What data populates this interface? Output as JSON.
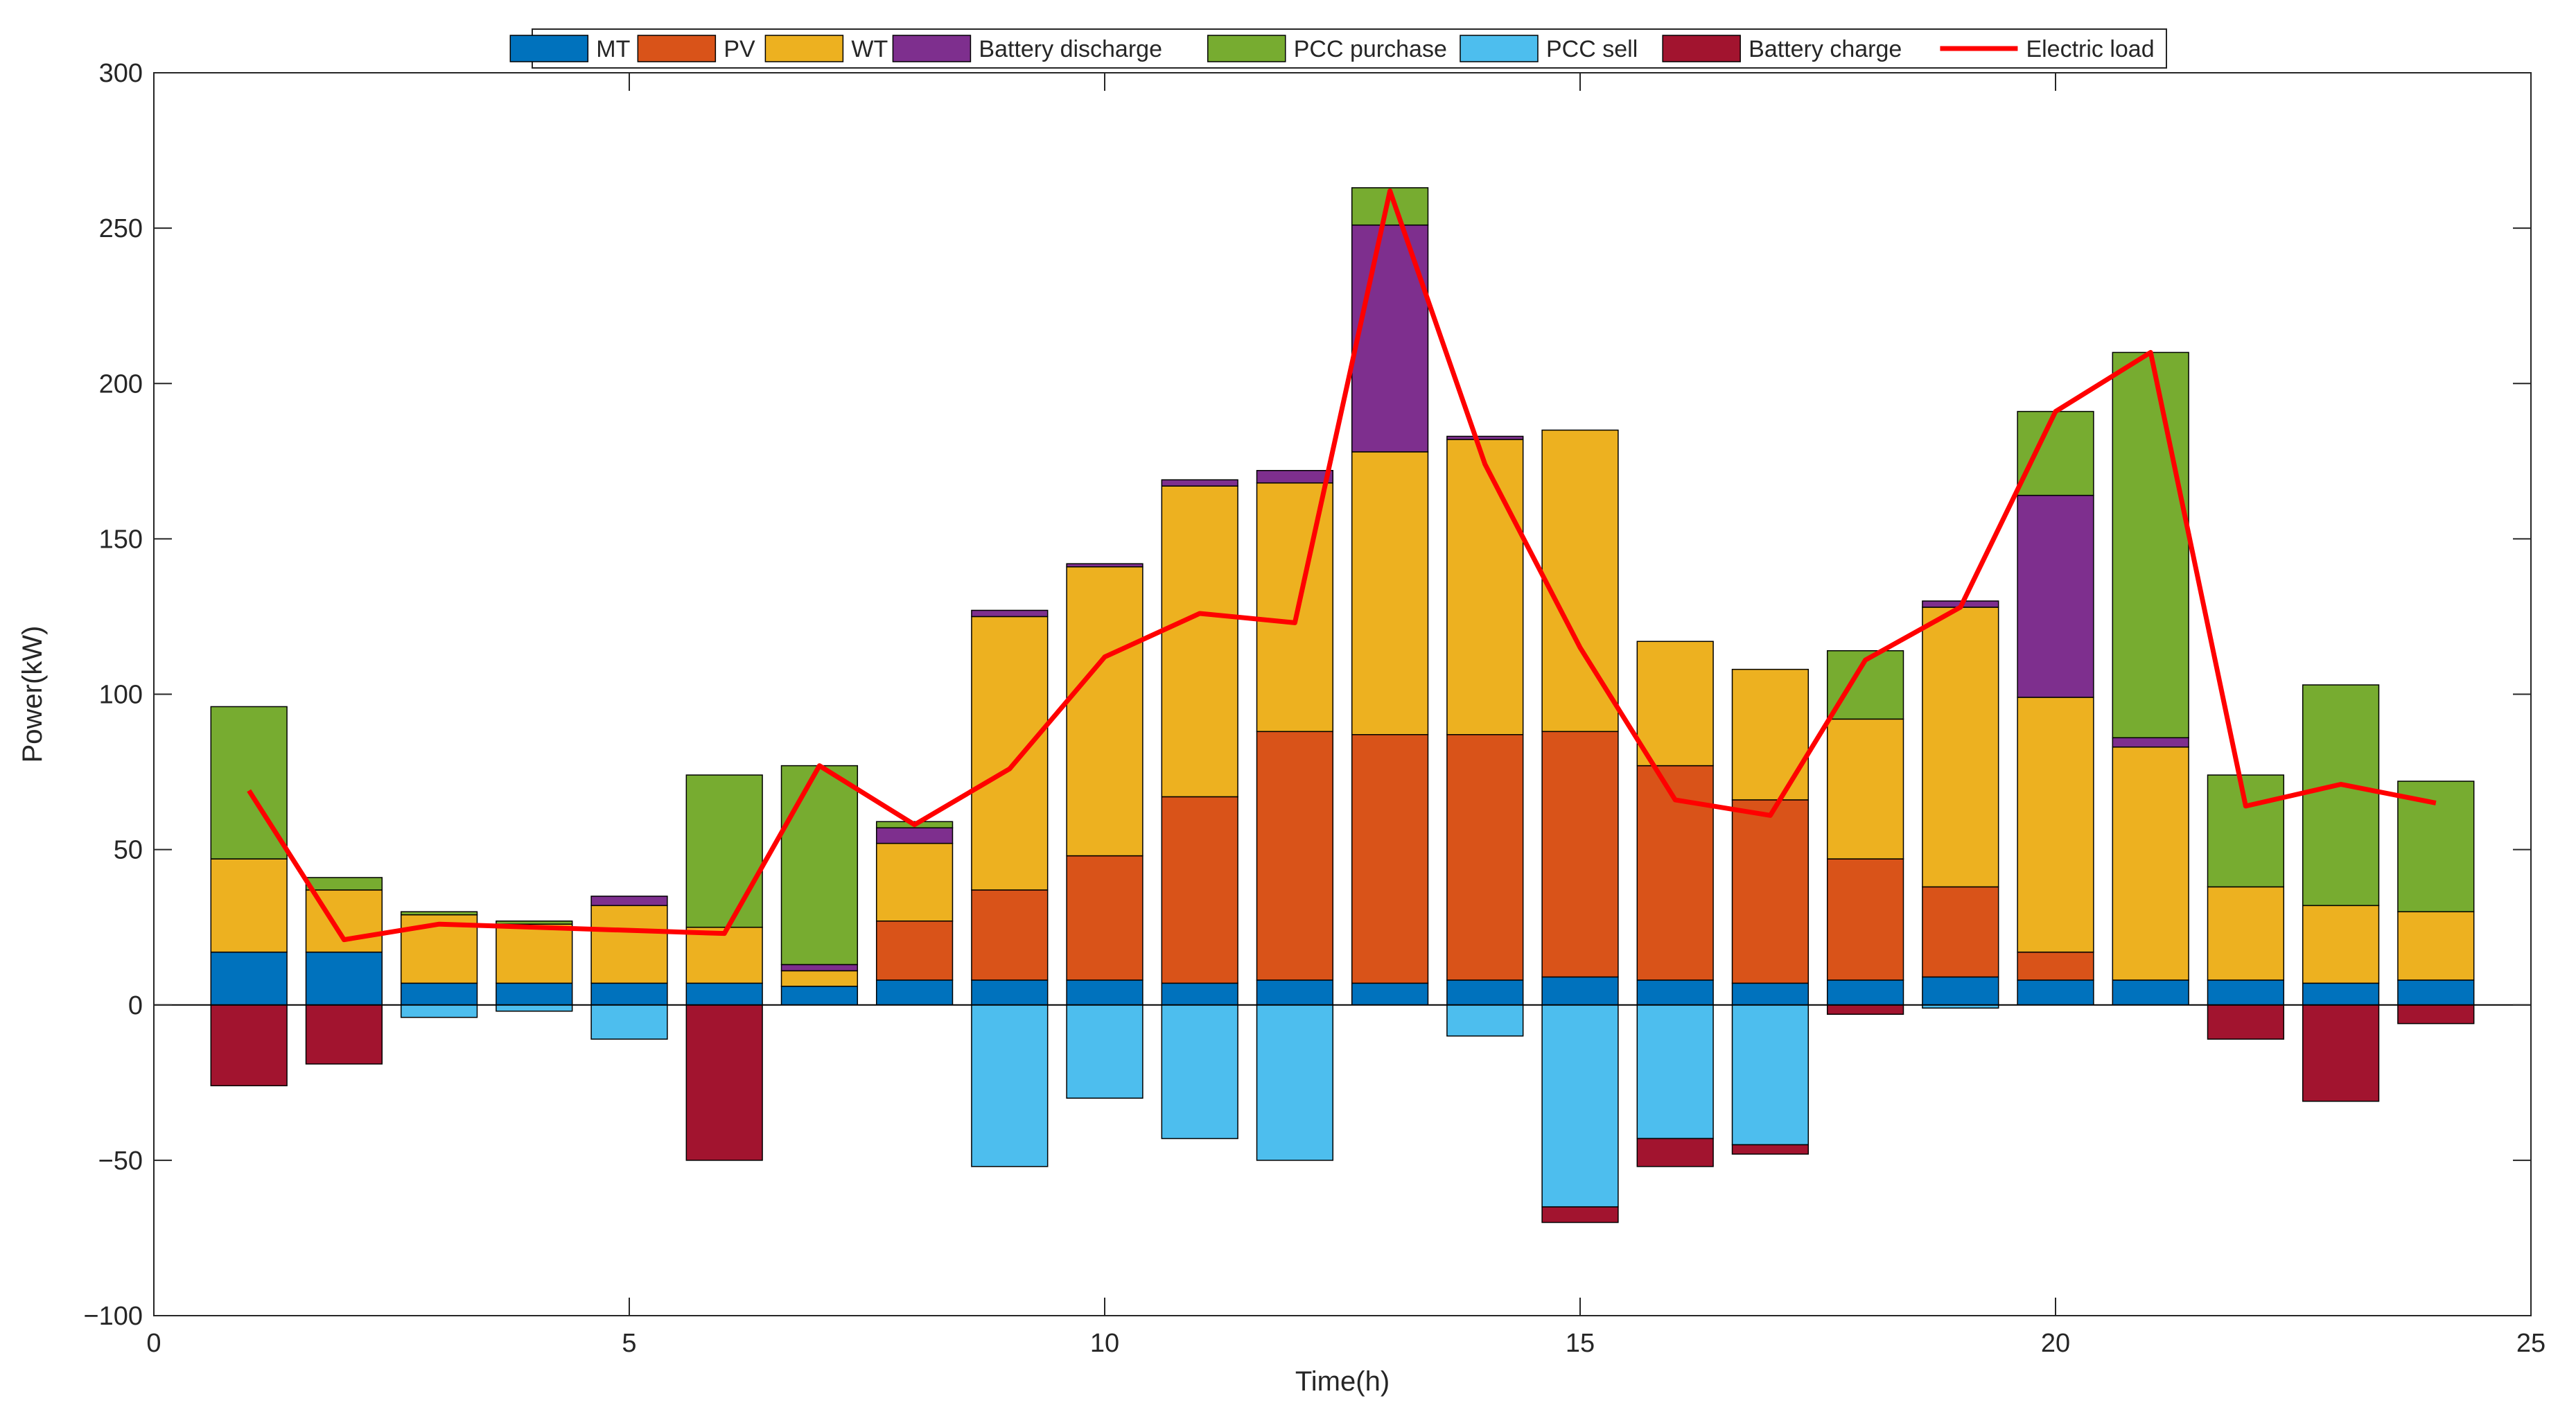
{
  "chart_data": {
    "type": "bar",
    "stacked": true,
    "title": "",
    "xlabel": "Time(h)",
    "ylabel": "Power(kW)",
    "xlim": [
      0,
      25
    ],
    "ylim": [
      -100,
      300
    ],
    "xticks": [
      0,
      5,
      10,
      15,
      20,
      25
    ],
    "yticks": [
      -100,
      -50,
      0,
      50,
      100,
      150,
      200,
      250,
      300
    ],
    "grid": false,
    "legend_position": "top-center",
    "x": [
      1,
      2,
      3,
      4,
      5,
      6,
      7,
      8,
      9,
      10,
      11,
      12,
      13,
      14,
      15,
      16,
      17,
      18,
      19,
      20,
      21,
      22,
      23,
      24
    ],
    "series": [
      {
        "name": "MT",
        "color": "#0072bd",
        "values": [
          17,
          17,
          7,
          7,
          7,
          7,
          6,
          8,
          8,
          8,
          7,
          8,
          7,
          8,
          9,
          8,
          7,
          8,
          9,
          8,
          8,
          8,
          7,
          8
        ]
      },
      {
        "name": "PV",
        "color": "#d95319",
        "values": [
          0,
          0,
          0,
          0,
          0,
          0,
          0,
          19,
          29,
          40,
          60,
          80,
          80,
          79,
          79,
          69,
          59,
          39,
          29,
          9,
          0,
          0,
          0,
          0
        ]
      },
      {
        "name": "WT",
        "color": "#edb120",
        "values": [
          30,
          20,
          22,
          19,
          25,
          18,
          5,
          25,
          88,
          93,
          100,
          80,
          91,
          95,
          97,
          40,
          42,
          45,
          90,
          82,
          75,
          30,
          25,
          22
        ]
      },
      {
        "name": "Battery discharge",
        "color": "#7e2f8e",
        "values": [
          0,
          0,
          0,
          0,
          3,
          0,
          2,
          5,
          2,
          1,
          2,
          4,
          73,
          1,
          0,
          0,
          0,
          0,
          2,
          65,
          3,
          0,
          0,
          0
        ]
      },
      {
        "name": "PCC purchase",
        "color": "#77ac30",
        "values": [
          49,
          4,
          1,
          1,
          0,
          49,
          64,
          2,
          0,
          0,
          0,
          0,
          12,
          0,
          0,
          0,
          0,
          22,
          0,
          27,
          124,
          36,
          71,
          42
        ]
      },
      {
        "name": "PCC sell",
        "color": "#4dbeee",
        "values": [
          0,
          0,
          -4,
          -2,
          -11,
          0,
          0,
          0,
          -52,
          -30,
          -43,
          -50,
          0,
          -10,
          -65,
          -43,
          -45,
          0,
          -1,
          0,
          0,
          0,
          0,
          0
        ]
      },
      {
        "name": "Battery charge",
        "color": "#a2142f",
        "values": [
          -26,
          -19,
          0,
          0,
          0,
          -50,
          0,
          0,
          0,
          0,
          0,
          0,
          0,
          0,
          -5,
          -9,
          -3,
          -3,
          0,
          0,
          0,
          -11,
          -31,
          -6
        ]
      }
    ],
    "line": {
      "name": "Electric load",
      "color": "#ff0000",
      "values": [
        69,
        21,
        26,
        25,
        24,
        23,
        77,
        58,
        76,
        112,
        126,
        123,
        262,
        174,
        115,
        66,
        61,
        111,
        128,
        191,
        210,
        64,
        71,
        65
      ]
    }
  }
}
